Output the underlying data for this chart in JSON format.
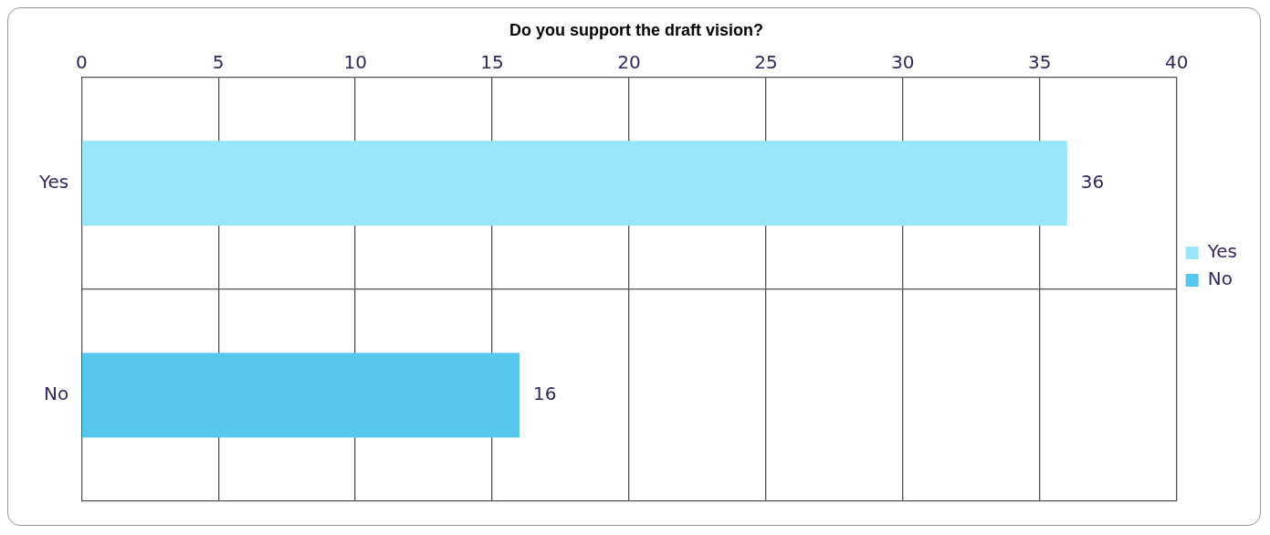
{
  "chart_data": {
    "type": "bar",
    "orientation": "horizontal",
    "title": "Do you support the draft vision?",
    "categories": [
      "Yes",
      "No"
    ],
    "series": [
      {
        "name": "Yes",
        "color": "#99e5fb",
        "values": [
          36,
          null
        ]
      },
      {
        "name": "No",
        "color": "#56c8ee",
        "values": [
          null,
          16
        ]
      }
    ],
    "xlim": [
      0,
      40
    ],
    "xticks": [
      0,
      5,
      10,
      15,
      20,
      25,
      30,
      35,
      40
    ],
    "grid": true,
    "legend": "right",
    "data_labels": true
  }
}
